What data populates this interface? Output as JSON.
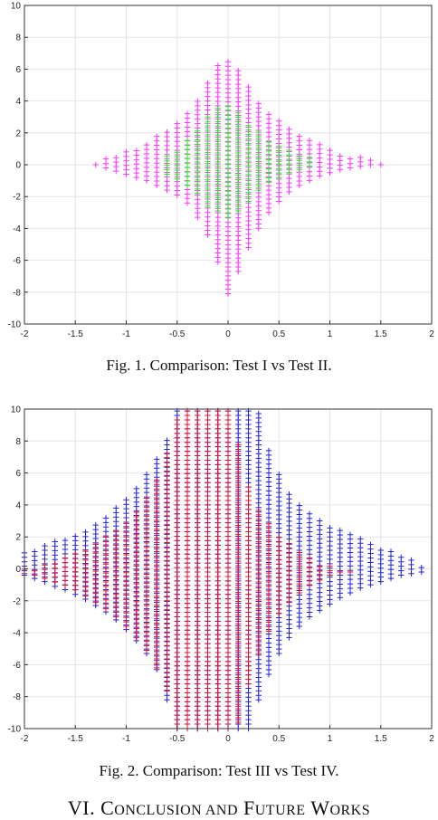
{
  "figures": [
    {
      "caption": "Fig. 1.   Comparison: Test I vs Test II.",
      "chart_data": {
        "type": "scatter",
        "marker": "+",
        "xlim": [
          -2,
          2
        ],
        "ylim": [
          -10,
          10
        ],
        "xticks": [
          -2,
          -1.5,
          -1,
          -0.5,
          0,
          0.5,
          1,
          1.5,
          2
        ],
        "yticks": [
          -10,
          -8,
          -6,
          -4,
          -2,
          0,
          2,
          4,
          6,
          8,
          10
        ],
        "grid": true,
        "series": [
          {
            "color": "#ff33ff",
            "columns": [
              {
                "x": -1.3,
                "ymin": 0.0,
                "ymax": 0.2
              },
              {
                "x": -1.2,
                "ymin": -0.2,
                "ymax": 0.4
              },
              {
                "x": -1.1,
                "ymin": -0.4,
                "ymax": 0.7
              },
              {
                "x": -1.0,
                "ymin": -0.6,
                "ymax": 0.9
              },
              {
                "x": -0.9,
                "ymin": -0.8,
                "ymax": 1.1
              },
              {
                "x": -0.8,
                "ymin": -1.0,
                "ymax": 1.4
              },
              {
                "x": -0.7,
                "ymin": -1.3,
                "ymax": 1.8
              },
              {
                "x": -0.6,
                "ymin": -1.6,
                "ymax": 2.2
              },
              {
                "x": -0.5,
                "ymin": -1.9,
                "ymax": 2.6
              },
              {
                "x": -0.4,
                "ymin": -2.4,
                "ymax": 3.3
              },
              {
                "x": -0.3,
                "ymin": -3.3,
                "ymax": 4.1
              },
              {
                "x": -0.2,
                "ymin": -4.4,
                "ymax": 5.2
              },
              {
                "x": -0.1,
                "ymin": -6.1,
                "ymax": 6.3
              },
              {
                "x": 0.0,
                "ymin": -8.1,
                "ymax": 6.6
              },
              {
                "x": 0.1,
                "ymin": -6.7,
                "ymax": 6.0
              },
              {
                "x": 0.2,
                "ymin": -5.2,
                "ymax": 5.0
              },
              {
                "x": 0.3,
                "ymin": -4.0,
                "ymax": 4.0
              },
              {
                "x": 0.4,
                "ymin": -3.0,
                "ymax": 3.3
              },
              {
                "x": 0.5,
                "ymin": -2.3,
                "ymax": 2.8
              },
              {
                "x": 0.6,
                "ymin": -1.7,
                "ymax": 2.3
              },
              {
                "x": 0.7,
                "ymin": -1.3,
                "ymax": 1.9
              },
              {
                "x": 0.8,
                "ymin": -1.0,
                "ymax": 1.6
              },
              {
                "x": 0.9,
                "ymin": -0.7,
                "ymax": 1.3
              },
              {
                "x": 1.0,
                "ymin": -0.5,
                "ymax": 1.0
              },
              {
                "x": 1.1,
                "ymin": -0.3,
                "ymax": 0.8
              },
              {
                "x": 1.2,
                "ymin": -0.2,
                "ymax": 0.6
              },
              {
                "x": 1.3,
                "ymin": -0.1,
                "ymax": 0.5
              },
              {
                "x": 1.4,
                "ymin": 0.0,
                "ymax": 0.3
              },
              {
                "x": 1.5,
                "ymin": 0.0,
                "ymax": 0.2
              }
            ]
          },
          {
            "color": "#33dd33",
            "columns": [
              {
                "x": -0.6,
                "ymin": -0.6,
                "ymax": 0.6
              },
              {
                "x": -0.5,
                "ymin": -0.9,
                "ymax": 1.0
              },
              {
                "x": -0.4,
                "ymin": -1.3,
                "ymax": 1.5
              },
              {
                "x": -0.3,
                "ymin": -1.8,
                "ymax": 2.2
              },
              {
                "x": -0.2,
                "ymin": -2.6,
                "ymax": 3.0
              },
              {
                "x": -0.1,
                "ymin": -2.9,
                "ymax": 3.6
              },
              {
                "x": 0.0,
                "ymin": -3.3,
                "ymax": 3.8
              },
              {
                "x": 0.1,
                "ymin": -2.9,
                "ymax": 3.4
              },
              {
                "x": 0.2,
                "ymin": -2.3,
                "ymax": 2.7
              },
              {
                "x": 0.3,
                "ymin": -1.6,
                "ymax": 2.1
              },
              {
                "x": 0.4,
                "ymin": -1.1,
                "ymax": 1.6
              },
              {
                "x": 0.5,
                "ymin": -0.8,
                "ymax": 1.2
              },
              {
                "x": 0.6,
                "ymin": -0.5,
                "ymax": 0.9
              },
              {
                "x": 0.7,
                "ymin": -0.3,
                "ymax": 0.7
              },
              {
                "x": 0.8,
                "ymin": -0.1,
                "ymax": 0.5
              }
            ]
          }
        ]
      }
    },
    {
      "caption": "Fig. 2.   Comparison: Test III vs Test IV.",
      "chart_data": {
        "type": "scatter",
        "marker": "+",
        "xlim": [
          -2,
          2
        ],
        "ylim": [
          -10,
          10
        ],
        "xticks": [
          -2,
          -1.5,
          -1,
          -0.5,
          0,
          0.5,
          1,
          1.5,
          2
        ],
        "yticks": [
          -10,
          -8,
          -6,
          -4,
          -2,
          0,
          2,
          4,
          6,
          8,
          10
        ],
        "grid": true,
        "series": [
          {
            "color": "#2222dd",
            "columns": [
              {
                "x": -2.0,
                "ymin": -0.4,
                "ymax": 1.1
              },
              {
                "x": -1.9,
                "ymin": -0.6,
                "ymax": 1.3
              },
              {
                "x": -1.8,
                "ymin": -0.8,
                "ymax": 1.5
              },
              {
                "x": -1.7,
                "ymin": -1.1,
                "ymax": 1.8
              },
              {
                "x": -1.6,
                "ymin": -1.3,
                "ymax": 2.0
              },
              {
                "x": -1.5,
                "ymin": -1.6,
                "ymax": 2.3
              },
              {
                "x": -1.4,
                "ymin": -1.9,
                "ymax": 2.5
              },
              {
                "x": -1.3,
                "ymin": -2.3,
                "ymax": 2.9
              },
              {
                "x": -1.2,
                "ymin": -2.7,
                "ymax": 3.3
              },
              {
                "x": -1.1,
                "ymin": -3.2,
                "ymax": 3.8
              },
              {
                "x": -1.0,
                "ymin": -3.8,
                "ymax": 4.4
              },
              {
                "x": -0.9,
                "ymin": -4.5,
                "ymax": 5.2
              },
              {
                "x": -0.8,
                "ymin": -5.3,
                "ymax": 6.1
              },
              {
                "x": -0.7,
                "ymin": -6.3,
                "ymax": 7.0
              },
              {
                "x": -0.6,
                "ymin": -8.2,
                "ymax": 8.2
              },
              {
                "x": -0.5,
                "ymin": -10.0,
                "ymax": 10.0
              },
              {
                "x": -0.4,
                "ymin": -10.0,
                "ymax": 10.0
              },
              {
                "x": -0.3,
                "ymin": -10.0,
                "ymax": 10.0
              },
              {
                "x": -0.2,
                "ymin": -10.0,
                "ymax": 10.0
              },
              {
                "x": -0.1,
                "ymin": -10.0,
                "ymax": 10.0
              },
              {
                "x": 0.0,
                "ymin": -10.0,
                "ymax": 10.0
              },
              {
                "x": 0.1,
                "ymin": -10.0,
                "ymax": 10.0
              },
              {
                "x": 0.2,
                "ymin": -10.0,
                "ymax": 10.0
              },
              {
                "x": 0.3,
                "ymin": -8.2,
                "ymax": 9.8
              },
              {
                "x": 0.4,
                "ymin": -6.6,
                "ymax": 7.5
              },
              {
                "x": 0.5,
                "ymin": -5.3,
                "ymax": 5.9
              },
              {
                "x": 0.6,
                "ymin": -4.3,
                "ymax": 4.8
              },
              {
                "x": 0.7,
                "ymin": -3.6,
                "ymax": 4.1
              },
              {
                "x": 0.8,
                "ymin": -3.0,
                "ymax": 3.6
              },
              {
                "x": 0.9,
                "ymin": -2.6,
                "ymax": 3.1
              },
              {
                "x": 1.0,
                "ymin": -2.2,
                "ymax": 2.8
              },
              {
                "x": 1.1,
                "ymin": -1.8,
                "ymax": 2.5
              },
              {
                "x": 1.2,
                "ymin": -1.5,
                "ymax": 2.2
              },
              {
                "x": 1.3,
                "ymin": -1.2,
                "ymax": 1.9
              },
              {
                "x": 1.4,
                "ymin": -1.0,
                "ymax": 1.7
              },
              {
                "x": 1.5,
                "ymin": -0.8,
                "ymax": 1.4
              },
              {
                "x": 1.6,
                "ymin": -0.6,
                "ymax": 1.1
              },
              {
                "x": 1.7,
                "ymin": -0.4,
                "ymax": 0.9
              },
              {
                "x": 1.8,
                "ymin": -0.3,
                "ymax": 0.7
              },
              {
                "x": 1.9,
                "ymin": -0.2,
                "ymax": 0.3
              }
            ]
          },
          {
            "color": "#dd1133",
            "columns": [
              {
                "x": -2.0,
                "ymin": -0.3,
                "ymax": 0.0
              },
              {
                "x": -1.9,
                "ymin": -0.4,
                "ymax": 0.1
              },
              {
                "x": -1.8,
                "ymin": -0.6,
                "ymax": 0.3
              },
              {
                "x": -1.7,
                "ymin": -0.8,
                "ymax": 0.5
              },
              {
                "x": -1.6,
                "ymin": -1.0,
                "ymax": 0.7
              },
              {
                "x": -1.5,
                "ymin": -1.3,
                "ymax": 1.0
              },
              {
                "x": -1.4,
                "ymin": -1.7,
                "ymax": 1.3
              },
              {
                "x": -1.3,
                "ymin": -2.1,
                "ymax": 1.6
              },
              {
                "x": -1.2,
                "ymin": -2.5,
                "ymax": 2.0
              },
              {
                "x": -1.1,
                "ymin": -3.0,
                "ymax": 2.4
              },
              {
                "x": -1.0,
                "ymin": -3.6,
                "ymax": 3.0
              },
              {
                "x": -0.9,
                "ymin": -4.3,
                "ymax": 3.6
              },
              {
                "x": -0.8,
                "ymin": -5.1,
                "ymax": 4.6
              },
              {
                "x": -0.7,
                "ymin": -6.2,
                "ymax": 5.8
              },
              {
                "x": -0.6,
                "ymin": -7.6,
                "ymax": 7.3
              },
              {
                "x": -0.5,
                "ymin": -10.0,
                "ymax": 9.4
              },
              {
                "x": -0.4,
                "ymin": -10.0,
                "ymax": 10.0
              },
              {
                "x": -0.3,
                "ymin": -10.0,
                "ymax": 10.0
              },
              {
                "x": -0.2,
                "ymin": -10.0,
                "ymax": 10.0
              },
              {
                "x": -0.1,
                "ymin": -10.0,
                "ymax": 10.0
              },
              {
                "x": 0.0,
                "ymin": -10.0,
                "ymax": 10.0
              },
              {
                "x": 0.1,
                "ymin": -9.6,
                "ymax": 7.8
              },
              {
                "x": 0.2,
                "ymin": -7.2,
                "ymax": 5.2
              },
              {
                "x": 0.3,
                "ymin": -5.3,
                "ymax": 3.8
              },
              {
                "x": 0.4,
                "ymin": -3.9,
                "ymax": 2.9
              },
              {
                "x": 0.5,
                "ymin": -2.8,
                "ymax": 2.2
              },
              {
                "x": 0.6,
                "ymin": -2.1,
                "ymax": 1.6
              },
              {
                "x": 0.7,
                "ymin": -1.5,
                "ymax": 1.1
              },
              {
                "x": 0.8,
                "ymin": -1.0,
                "ymax": 0.7
              },
              {
                "x": 0.9,
                "ymin": -0.7,
                "ymax": 0.4
              },
              {
                "x": 1.0,
                "ymin": -0.4,
                "ymax": 0.2
              },
              {
                "x": 1.1,
                "ymin": -0.2,
                "ymax": 0.0
              },
              {
                "x": 1.2,
                "ymin": -0.2,
                "ymax": 0.0
              }
            ]
          }
        ]
      }
    }
  ],
  "section_heading": {
    "number": "VI.",
    "first_cap": "C",
    "first_rest": "ONCLUSION AND",
    "second_cap": "F",
    "second_rest": "UTURE",
    "third_cap": "W",
    "third_rest": "ORKS"
  }
}
